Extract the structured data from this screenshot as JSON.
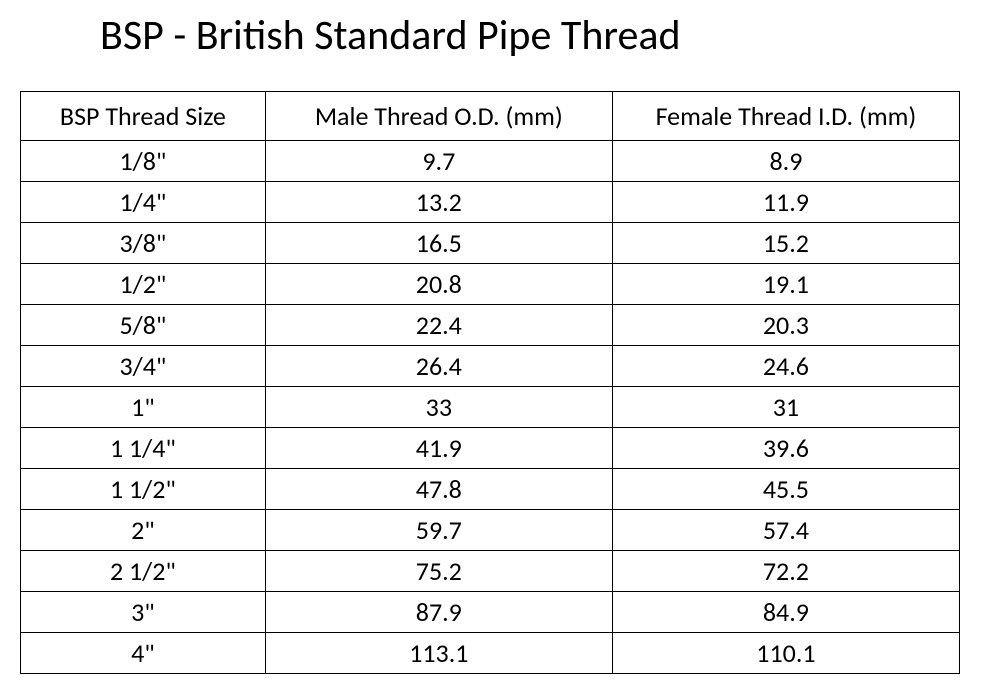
{
  "title": "BSP - British Standard Pipe Thread",
  "table": {
    "type": "table",
    "background_color": "#ffffff",
    "border_color": "#000000",
    "text_color": "#000000",
    "title_fontsize": 42,
    "header_fontsize": 26,
    "cell_fontsize": 26,
    "columns": [
      {
        "label": "BSP Thread Size",
        "width_percent": 26,
        "align": "center"
      },
      {
        "label": "Male Thread O.D. (mm)",
        "width_percent": 37,
        "align": "center"
      },
      {
        "label": "Female Thread I.D. (mm)",
        "width_percent": 37,
        "align": "center"
      }
    ],
    "rows": [
      [
        "1/8\"",
        "9.7",
        "8.9"
      ],
      [
        "1/4\"",
        "13.2",
        "11.9"
      ],
      [
        "3/8\"",
        "16.5",
        "15.2"
      ],
      [
        "1/2\"",
        "20.8",
        "19.1"
      ],
      [
        "5/8\"",
        "22.4",
        "20.3"
      ],
      [
        "3/4\"",
        "26.4",
        "24.6"
      ],
      [
        "1\"",
        "33",
        "31"
      ],
      [
        "1 1/4\"",
        "41.9",
        "39.6"
      ],
      [
        "1 1/2\"",
        "47.8",
        "45.5"
      ],
      [
        "2\"",
        "59.7",
        "57.4"
      ],
      [
        "2 1/2\"",
        "75.2",
        "72.2"
      ],
      [
        "3\"",
        "87.9",
        "84.9"
      ],
      [
        "4\"",
        "113.1",
        "110.1"
      ]
    ]
  }
}
